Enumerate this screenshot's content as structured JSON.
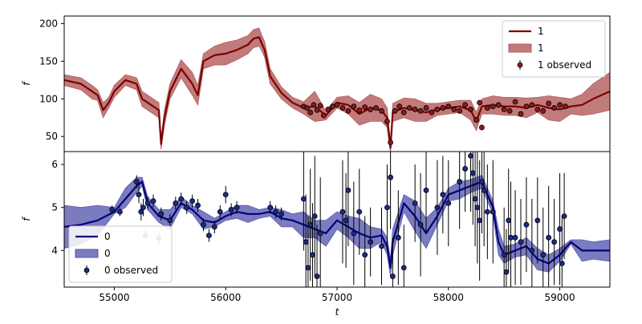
{
  "chart_data": [
    {
      "type": "line",
      "panel": "top",
      "ylabel": "f",
      "xlabel": "",
      "xlim": [
        54550,
        59450
      ],
      "ylim": [
        30,
        210
      ],
      "yticks": [
        50,
        100,
        150,
        200
      ],
      "grid": false,
      "legend_position": "top-right",
      "legend": [
        "1",
        "1",
        "1 observed"
      ],
      "colors": {
        "line": "#7b0000",
        "band": "#b35a5a",
        "marker_face": "#8b1a1a"
      },
      "series": [
        {
          "name": "1",
          "kind": "gp_mean_with_band",
          "x": [
            54550,
            54700,
            54800,
            54850,
            54900,
            54950,
            55000,
            55100,
            55200,
            55250,
            55300,
            55400,
            55420,
            55450,
            55500,
            55600,
            55700,
            55750,
            55800,
            55900,
            56000,
            56100,
            56200,
            56250,
            56300,
            56320,
            56350,
            56400,
            56500,
            56600,
            56700,
            56800,
            56900,
            57000,
            57100,
            57200,
            57300,
            57400,
            57450,
            57480,
            57500,
            57600,
            57700,
            57800,
            57900,
            58000,
            58100,
            58200,
            58250,
            58300,
            58400,
            58500,
            58600,
            58700,
            58800,
            58900,
            59000,
            59100,
            59200,
            59300,
            59450
          ],
          "mean": [
            125,
            120,
            110,
            105,
            85,
            95,
            110,
            125,
            120,
            100,
            95,
            85,
            40,
            75,
            110,
            140,
            120,
            105,
            150,
            158,
            160,
            165,
            172,
            180,
            182,
            175,
            165,
            130,
            108,
            95,
            88,
            90,
            78,
            95,
            92,
            80,
            88,
            85,
            75,
            35,
            82,
            88,
            85,
            82,
            86,
            88,
            90,
            85,
            70,
            90,
            92,
            90,
            90,
            88,
            92,
            88,
            86,
            90,
            92,
            100,
            110
          ],
          "lower": [
            118,
            112,
            100,
            98,
            75,
            88,
            102,
            118,
            112,
            90,
            85,
            75,
            33,
            65,
            100,
            128,
            105,
            92,
            140,
            145,
            145,
            152,
            160,
            168,
            170,
            165,
            155,
            120,
            100,
            88,
            80,
            70,
            72,
            88,
            80,
            65,
            70,
            70,
            62,
            28,
            70,
            75,
            70,
            70,
            78,
            80,
            82,
            72,
            58,
            80,
            80,
            78,
            78,
            75,
            82,
            72,
            70,
            80,
            78,
            80,
            85
          ],
          "upper": [
            132,
            128,
            118,
            112,
            95,
            102,
            118,
            132,
            128,
            110,
            105,
            95,
            48,
            85,
            120,
            152,
            135,
            118,
            160,
            170,
            175,
            178,
            184,
            192,
            194,
            186,
            176,
            140,
            116,
            102,
            96,
            110,
            84,
            102,
            104,
            95,
            106,
            100,
            88,
            42,
            94,
            101,
            100,
            94,
            94,
            96,
            98,
            98,
            82,
            100,
            104,
            102,
            102,
            101,
            102,
            104,
            102,
            100,
            106,
            120,
            135
          ]
        },
        {
          "name": "1 observed",
          "kind": "observed_points",
          "x": [
            56700,
            56730,
            56760,
            56790,
            56820,
            56850,
            56880,
            56920,
            56960,
            57000,
            57050,
            57100,
            57150,
            57200,
            57250,
            57300,
            57350,
            57400,
            57450,
            57480,
            57520,
            57560,
            57600,
            57650,
            57700,
            57750,
            57800,
            57850,
            57900,
            57950,
            58000,
            58050,
            58100,
            58150,
            58200,
            58250,
            58280,
            58300,
            58350,
            58400,
            58450,
            58500,
            58550,
            58600,
            58650,
            58700,
            58750,
            58800,
            58850,
            58900,
            58950,
            59000,
            59050
          ],
          "y": [
            90,
            88,
            82,
            92,
            85,
            91,
            78,
            86,
            90,
            92,
            88,
            84,
            90,
            85,
            89,
            86,
            88,
            84,
            70,
            42,
            84,
            90,
            82,
            88,
            86,
            84,
            88,
            82,
            86,
            88,
            90,
            86,
            84,
            92,
            86,
            72,
            95,
            62,
            88,
            90,
            92,
            86,
            84,
            96,
            80,
            90,
            92,
            86,
            84,
            94,
            88,
            92,
            90
          ]
        }
      ]
    },
    {
      "type": "line",
      "panel": "bottom",
      "ylabel": "f",
      "xlabel": "t",
      "xlim": [
        54550,
        59450
      ],
      "ylim": [
        3.15,
        6.3
      ],
      "yticks": [
        4,
        5,
        6
      ],
      "xticks": [
        55000,
        56000,
        57000,
        58000,
        59000
      ],
      "grid": false,
      "legend_position": "bottom-left",
      "legend": [
        "0",
        "0",
        "0 observed"
      ],
      "colors": {
        "line": "#00007a",
        "band": "#5a5ab0",
        "marker_face": "#1a2a8c"
      },
      "series": [
        {
          "name": "0",
          "kind": "gp_mean_with_band",
          "x": [
            54550,
            54700,
            54850,
            55000,
            55100,
            55200,
            55250,
            55300,
            55400,
            55500,
            55600,
            55700,
            55800,
            55900,
            56000,
            56100,
            56200,
            56300,
            56400,
            56500,
            56600,
            56700,
            56800,
            56900,
            57000,
            57100,
            57200,
            57300,
            57400,
            57450,
            57480,
            57500,
            57600,
            57700,
            57800,
            57900,
            58000,
            58100,
            58200,
            58300,
            58400,
            58450,
            58500,
            58600,
            58700,
            58800,
            58900,
            59000,
            59100,
            59200,
            59300,
            59450
          ],
          "mean": [
            4.55,
            4.6,
            4.7,
            4.9,
            5.2,
            5.5,
            5.6,
            5.1,
            4.8,
            4.7,
            5.1,
            4.95,
            4.7,
            4.65,
            4.8,
            4.9,
            4.85,
            4.85,
            4.9,
            4.75,
            4.7,
            4.6,
            4.5,
            4.4,
            4.7,
            4.55,
            4.4,
            4.3,
            4.35,
            4.1,
            3.6,
            4.2,
            5.1,
            4.8,
            4.4,
            4.8,
            5.3,
            5.4,
            5.5,
            5.6,
            5.0,
            4.2,
            3.9,
            4.0,
            4.1,
            3.8,
            3.7,
            3.9,
            4.2,
            4.0,
            4.0,
            4.0
          ],
          "lower": [
            4.05,
            4.15,
            4.35,
            4.85,
            5.0,
            5.35,
            5.5,
            4.95,
            4.65,
            4.5,
            5.0,
            4.85,
            4.5,
            4.55,
            4.7,
            4.75,
            4.65,
            4.75,
            4.8,
            4.55,
            4.55,
            4.3,
            4.3,
            4.1,
            4.5,
            4.3,
            4.05,
            4.05,
            4.2,
            3.9,
            3.4,
            3.9,
            4.9,
            4.45,
            4.05,
            4.6,
            5.15,
            5.2,
            5.35,
            5.45,
            4.85,
            3.9,
            3.7,
            3.85,
            3.9,
            3.55,
            3.5,
            3.75,
            4.15,
            3.75,
            3.8,
            3.75
          ],
          "upper": [
            5.05,
            5.0,
            5.05,
            5.0,
            5.45,
            5.7,
            5.7,
            5.25,
            4.95,
            4.95,
            5.25,
            5.05,
            4.9,
            4.75,
            4.9,
            5.05,
            5.05,
            4.95,
            5.0,
            4.95,
            4.85,
            4.9,
            4.7,
            4.7,
            4.9,
            4.8,
            4.75,
            4.55,
            4.5,
            4.3,
            3.8,
            4.5,
            5.3,
            5.15,
            4.75,
            5.0,
            5.45,
            5.6,
            5.65,
            5.75,
            5.15,
            4.5,
            4.1,
            4.15,
            4.3,
            4.05,
            3.9,
            4.05,
            4.25,
            4.25,
            4.2,
            4.25
          ]
        },
        {
          "name": "0 observed",
          "kind": "observed_points",
          "x": [
            54980,
            55050,
            55200,
            55220,
            55240,
            55260,
            55300,
            55350,
            55420,
            55500,
            55550,
            55600,
            55650,
            55700,
            55750,
            55800,
            55850,
            55900,
            55950,
            56000,
            56050,
            56100,
            56400,
            56450,
            56500,
            56700,
            56720,
            56740,
            56760,
            56780,
            56800,
            56820,
            56850,
            57050,
            57080,
            57100,
            57150,
            57200,
            57250,
            57300,
            57400,
            57450,
            57480,
            57500,
            57550,
            57600,
            57700,
            57750,
            57800,
            57900,
            57950,
            58000,
            58100,
            58150,
            58200,
            58220,
            58240,
            58260,
            58280,
            58300,
            58320,
            58350,
            58400,
            58500,
            58520,
            58540,
            58560,
            58600,
            58650,
            58700,
            58750,
            58800,
            58850,
            58900,
            58950,
            59000,
            59020,
            59040
          ],
          "y": [
            4.95,
            4.9,
            5.6,
            5.3,
            4.9,
            5.0,
            5.1,
            5.15,
            4.85,
            4.7,
            5.1,
            5.2,
            5.0,
            5.15,
            5.05,
            4.6,
            4.35,
            4.55,
            4.9,
            5.3,
            4.95,
            5.0,
            5.0,
            4.9,
            4.85,
            5.2,
            4.2,
            3.6,
            4.6,
            3.9,
            4.8,
            3.4,
            4.4,
            4.9,
            4.7,
            5.4,
            4.4,
            4.9,
            3.9,
            4.2,
            4.1,
            5.0,
            5.7,
            3.4,
            4.3,
            3.6,
            5.1,
            4.6,
            5.4,
            5.0,
            5.3,
            5.1,
            5.6,
            5.9,
            6.2,
            5.8,
            5.2,
            5.0,
            4.7,
            5.6,
            5.4,
            4.9,
            4.9,
            3.9,
            3.5,
            4.7,
            4.3,
            4.3,
            4.2,
            4.6,
            4.0,
            4.7,
            3.9,
            4.3,
            4.2,
            4.5,
            3.7,
            4.8
          ],
          "err": [
            0.1,
            0.1,
            0.15,
            0.2,
            0.2,
            0.2,
            0.15,
            0.15,
            0.15,
            0.15,
            0.15,
            0.15,
            0.15,
            0.15,
            0.15,
            0.15,
            0.15,
            0.15,
            0.15,
            0.2,
            0.15,
            0.15,
            0.15,
            0.15,
            0.15,
            1.2,
            1.1,
            1.2,
            1.3,
            1.2,
            1.4,
            1.2,
            1.3,
            1.2,
            1.1,
            1.3,
            1.2,
            1.0,
            0.9,
            0.8,
            0.9,
            1.0,
            1.2,
            0.9,
            1.1,
            1.0,
            0.9,
            1.2,
            1.0,
            1.1,
            0.9,
            1.0,
            1.1,
            1.0,
            1.3,
            1.2,
            1.1,
            1.3,
            1.4,
            1.2,
            1.3,
            1.1,
            1.2,
            1.1,
            1.0,
            1.2,
            1.3,
            1.1,
            1.0,
            1.1,
            1.2,
            1.0,
            1.1,
            1.2,
            1.0,
            1.3,
            1.1,
            1.0
          ]
        },
        {
          "name": "0 observed",
          "kind": "gray_points",
          "x": [
            55280,
            55400
          ],
          "y": [
            4.35,
            4.28
          ],
          "err": [
            0.15,
            0.15
          ]
        }
      ]
    }
  ]
}
